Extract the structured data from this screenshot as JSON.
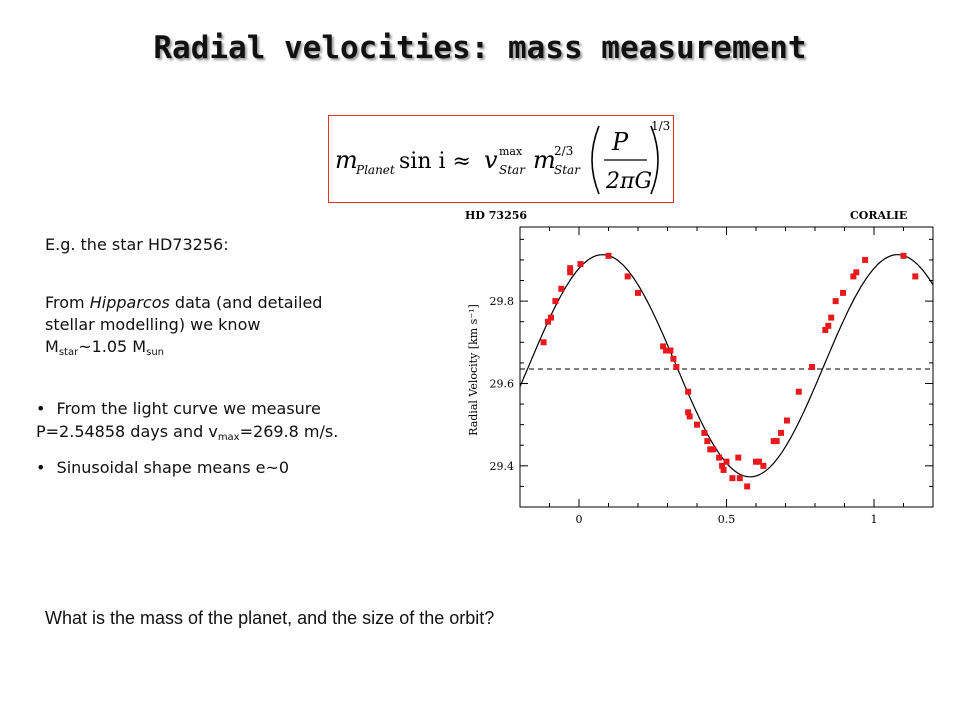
{
  "title": "Radial velocities: mass measurement",
  "formula": {
    "lhs_m": "m",
    "lhs_sub": "Planet",
    "sin_i": "sin i ≈ ",
    "v": "v",
    "v_sub": "Star",
    "v_sup": "max",
    "m2": "m",
    "m2_sub": "Star",
    "m2_sup": "2/3",
    "num": "P",
    "den": "2πG",
    "exp": "1/3"
  },
  "text": {
    "example": "E.g. the star HD73256:",
    "hipparcos_pre": "From ",
    "hipparcos_italic": "Hipparcos",
    "hipparcos_post": " data (and detailed",
    "hipparcos_line2": "stellar modelling) we know",
    "mass_m1": "M",
    "mass_sub1": "star",
    "mass_mid": "~1.05 M",
    "mass_sub2": "sun",
    "bullet1_line1": "From the light curve we measure",
    "bullet1_line2_a": "P=2.54858 days and v",
    "bullet1_sub": "max",
    "bullet1_line2_b": "=269.8 m/s.",
    "bullet2": "Sinusoidal shape means e~0",
    "question": "What is the mass of the planet, and the size of the orbit?"
  },
  "chart_data": {
    "type": "scatter",
    "title": "HD 73256",
    "instrument_label": "CORALIE",
    "xlabel": "",
    "ylabel": "Radial Velocity [km s⁻¹]",
    "xlim": [
      -0.2,
      1.2
    ],
    "ylim": [
      29.3,
      29.98
    ],
    "xticks": [
      0,
      0.5,
      1
    ],
    "xtick_labels": [
      "0",
      "0.5",
      "1"
    ],
    "yticks": [
      29.4,
      29.6,
      29.8
    ],
    "ytick_labels": [
      "29.4",
      "29.6",
      "29.8"
    ],
    "mean_velocity": 29.635,
    "model": {
      "gamma": 29.643,
      "K": 0.2698,
      "phase_max": 0.08
    },
    "marker_color": "#e8191c",
    "points": [
      [
        -0.12,
        29.7
      ],
      [
        -0.105,
        29.75
      ],
      [
        -0.095,
        29.76
      ],
      [
        -0.08,
        29.8
      ],
      [
        -0.06,
        29.83
      ],
      [
        -0.03,
        29.87
      ],
      [
        -0.03,
        29.88
      ],
      [
        0.005,
        29.89
      ],
      [
        0.1,
        29.91
      ],
      [
        0.165,
        29.86
      ],
      [
        0.2,
        29.82
      ],
      [
        0.285,
        29.69
      ],
      [
        0.295,
        29.68
      ],
      [
        0.31,
        29.68
      ],
      [
        0.32,
        29.66
      ],
      [
        0.33,
        29.64
      ],
      [
        0.37,
        29.58
      ],
      [
        0.37,
        29.53
      ],
      [
        0.375,
        29.52
      ],
      [
        0.4,
        29.5
      ],
      [
        0.425,
        29.48
      ],
      [
        0.435,
        29.46
      ],
      [
        0.445,
        29.44
      ],
      [
        0.455,
        29.44
      ],
      [
        0.475,
        29.42
      ],
      [
        0.485,
        29.4
      ],
      [
        0.49,
        29.39
      ],
      [
        0.5,
        29.41
      ],
      [
        0.52,
        29.37
      ],
      [
        0.54,
        29.42
      ],
      [
        0.545,
        29.37
      ],
      [
        0.57,
        29.35
      ],
      [
        0.6,
        29.41
      ],
      [
        0.61,
        29.41
      ],
      [
        0.625,
        29.4
      ],
      [
        0.66,
        29.46
      ],
      [
        0.67,
        29.46
      ],
      [
        0.685,
        29.48
      ],
      [
        0.705,
        29.51
      ],
      [
        0.745,
        29.58
      ],
      [
        0.79,
        29.64
      ],
      [
        0.835,
        29.73
      ],
      [
        0.845,
        29.74
      ],
      [
        0.855,
        29.76
      ],
      [
        0.87,
        29.8
      ],
      [
        0.895,
        29.82
      ],
      [
        0.93,
        29.86
      ],
      [
        0.94,
        29.87
      ],
      [
        0.97,
        29.9
      ],
      [
        1.1,
        29.91
      ],
      [
        1.14,
        29.86
      ]
    ]
  }
}
